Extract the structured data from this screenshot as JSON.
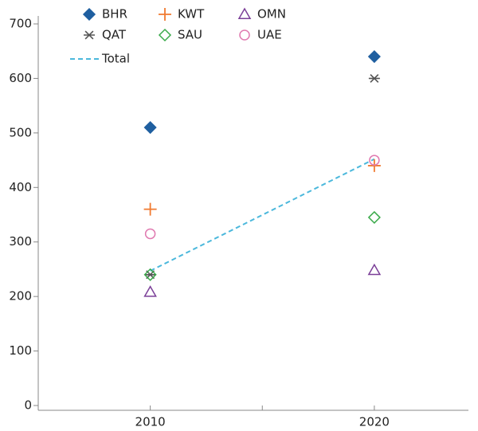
{
  "chart_data": {
    "type": "scatter",
    "x": [
      2010,
      2020
    ],
    "xlim": [
      2005,
      2024.2
    ],
    "xticks": [
      2010,
      {
        "value": 2015,
        "label": null
      },
      2020
    ],
    "ylim": [
      0,
      700
    ],
    "yticks": [
      0,
      100,
      200,
      300,
      400,
      500,
      600,
      700
    ],
    "series": [
      {
        "name": "BHR",
        "color": "#1f5fa0",
        "marker": "diamond-filled",
        "values": [
          510,
          640
        ]
      },
      {
        "name": "KWT",
        "color": "#f07a30",
        "marker": "plus",
        "values": [
          360,
          440
        ]
      },
      {
        "name": "OMN",
        "color": "#7b3f98",
        "marker": "triangle",
        "values": [
          208,
          248
        ]
      },
      {
        "name": "QAT",
        "color": "#555555",
        "marker": "asterisk",
        "values": [
          240,
          600
        ]
      },
      {
        "name": "SAU",
        "color": "#3aaa4a",
        "marker": "diamond",
        "values": [
          240,
          345
        ]
      },
      {
        "name": "UAE",
        "color": "#e07ab0",
        "marker": "circle",
        "values": [
          315,
          450
        ]
      },
      {
        "name": "Total",
        "color": "#4bb8dc",
        "marker": "dashed-line",
        "values": [
          247,
          452
        ]
      }
    ]
  }
}
